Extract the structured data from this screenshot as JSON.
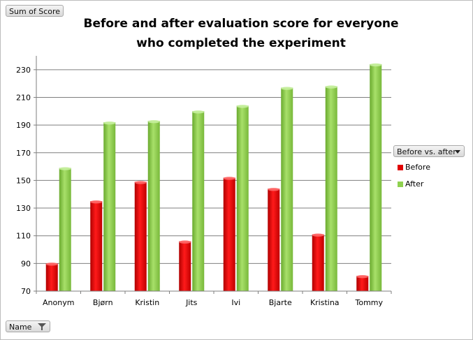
{
  "controls": {
    "values_field": "Sum of Score",
    "row_field": "Name",
    "legend_field": "Before vs. after"
  },
  "chart_data": {
    "type": "bar",
    "title": "Before and after evaluation score for everyone who completed the experiment",
    "title_lines": [
      "Before and after evaluation score for everyone",
      "who completed the experiment"
    ],
    "categories": [
      "Anonym",
      "Bjørn",
      "Kristin",
      "Jits",
      "Ivi",
      "Bjarte",
      "Kristina",
      "Tommy"
    ],
    "series": [
      {
        "name": "Before",
        "color": "#e00000",
        "values": [
          90,
          135,
          149,
          106,
          152,
          144,
          111,
          81
        ]
      },
      {
        "name": "After",
        "color": "#8fd14f",
        "values": [
          159,
          192,
          193,
          200,
          204,
          217,
          218,
          234
        ]
      }
    ],
    "ylim": [
      70,
      240
    ],
    "yticks": [
      70,
      90,
      110,
      130,
      150,
      170,
      190,
      210,
      230
    ],
    "grid": true,
    "legend_position": "right"
  }
}
